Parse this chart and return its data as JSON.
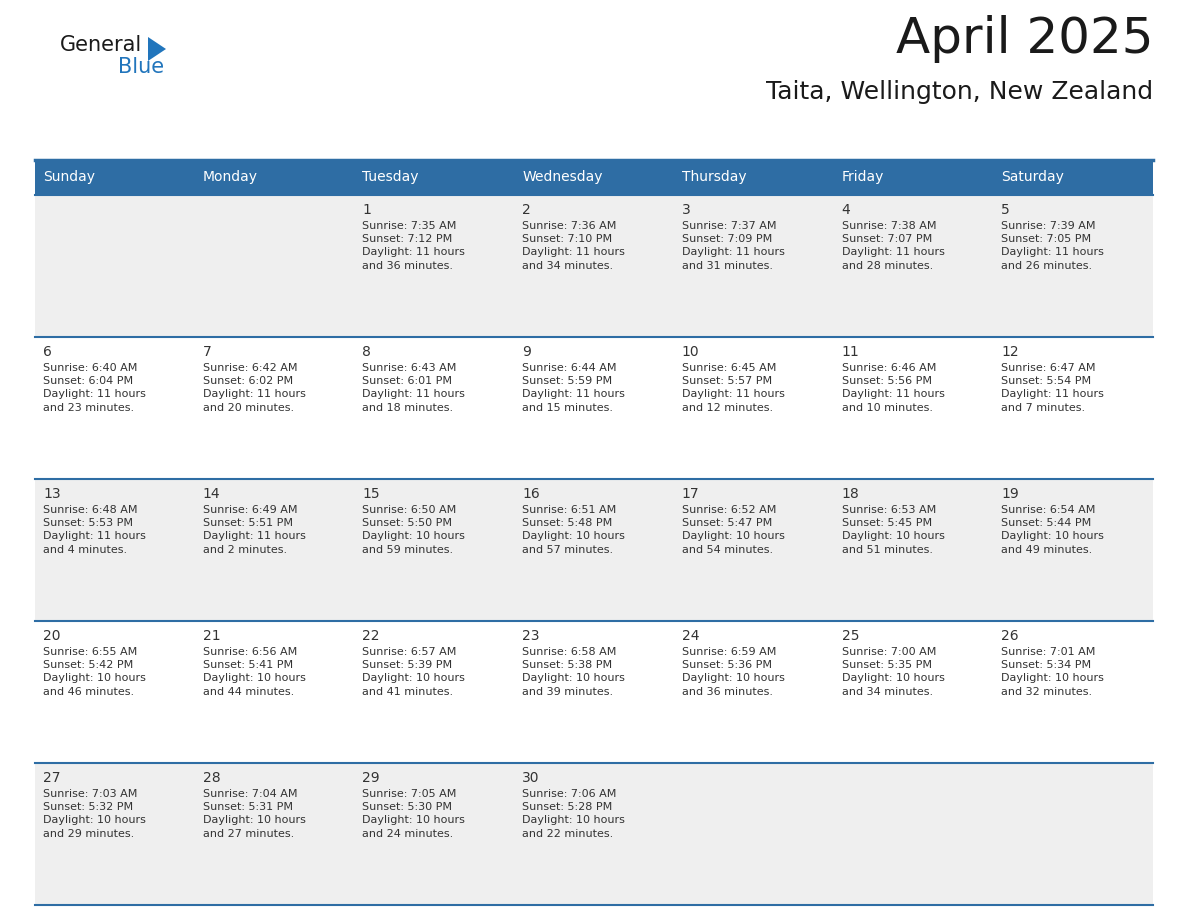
{
  "title": "April 2025",
  "subtitle": "Taita, Wellington, New Zealand",
  "header_bg": "#2E6DA4",
  "header_text_color": "#FFFFFF",
  "border_color": "#2E6DA4",
  "row_sep_color": "#3D6B9A",
  "text_color": "#333333",
  "cell_bg_even": "#EFEFEF",
  "cell_bg_odd": "#FFFFFF",
  "day_headers": [
    "Sunday",
    "Monday",
    "Tuesday",
    "Wednesday",
    "Thursday",
    "Friday",
    "Saturday"
  ],
  "calendar_data": [
    [
      {
        "day": "",
        "info": ""
      },
      {
        "day": "",
        "info": ""
      },
      {
        "day": "1",
        "info": "Sunrise: 7:35 AM\nSunset: 7:12 PM\nDaylight: 11 hours\nand 36 minutes."
      },
      {
        "day": "2",
        "info": "Sunrise: 7:36 AM\nSunset: 7:10 PM\nDaylight: 11 hours\nand 34 minutes."
      },
      {
        "day": "3",
        "info": "Sunrise: 7:37 AM\nSunset: 7:09 PM\nDaylight: 11 hours\nand 31 minutes."
      },
      {
        "day": "4",
        "info": "Sunrise: 7:38 AM\nSunset: 7:07 PM\nDaylight: 11 hours\nand 28 minutes."
      },
      {
        "day": "5",
        "info": "Sunrise: 7:39 AM\nSunset: 7:05 PM\nDaylight: 11 hours\nand 26 minutes."
      }
    ],
    [
      {
        "day": "6",
        "info": "Sunrise: 6:40 AM\nSunset: 6:04 PM\nDaylight: 11 hours\nand 23 minutes."
      },
      {
        "day": "7",
        "info": "Sunrise: 6:42 AM\nSunset: 6:02 PM\nDaylight: 11 hours\nand 20 minutes."
      },
      {
        "day": "8",
        "info": "Sunrise: 6:43 AM\nSunset: 6:01 PM\nDaylight: 11 hours\nand 18 minutes."
      },
      {
        "day": "9",
        "info": "Sunrise: 6:44 AM\nSunset: 5:59 PM\nDaylight: 11 hours\nand 15 minutes."
      },
      {
        "day": "10",
        "info": "Sunrise: 6:45 AM\nSunset: 5:57 PM\nDaylight: 11 hours\nand 12 minutes."
      },
      {
        "day": "11",
        "info": "Sunrise: 6:46 AM\nSunset: 5:56 PM\nDaylight: 11 hours\nand 10 minutes."
      },
      {
        "day": "12",
        "info": "Sunrise: 6:47 AM\nSunset: 5:54 PM\nDaylight: 11 hours\nand 7 minutes."
      }
    ],
    [
      {
        "day": "13",
        "info": "Sunrise: 6:48 AM\nSunset: 5:53 PM\nDaylight: 11 hours\nand 4 minutes."
      },
      {
        "day": "14",
        "info": "Sunrise: 6:49 AM\nSunset: 5:51 PM\nDaylight: 11 hours\nand 2 minutes."
      },
      {
        "day": "15",
        "info": "Sunrise: 6:50 AM\nSunset: 5:50 PM\nDaylight: 10 hours\nand 59 minutes."
      },
      {
        "day": "16",
        "info": "Sunrise: 6:51 AM\nSunset: 5:48 PM\nDaylight: 10 hours\nand 57 minutes."
      },
      {
        "day": "17",
        "info": "Sunrise: 6:52 AM\nSunset: 5:47 PM\nDaylight: 10 hours\nand 54 minutes."
      },
      {
        "day": "18",
        "info": "Sunrise: 6:53 AM\nSunset: 5:45 PM\nDaylight: 10 hours\nand 51 minutes."
      },
      {
        "day": "19",
        "info": "Sunrise: 6:54 AM\nSunset: 5:44 PM\nDaylight: 10 hours\nand 49 minutes."
      }
    ],
    [
      {
        "day": "20",
        "info": "Sunrise: 6:55 AM\nSunset: 5:42 PM\nDaylight: 10 hours\nand 46 minutes."
      },
      {
        "day": "21",
        "info": "Sunrise: 6:56 AM\nSunset: 5:41 PM\nDaylight: 10 hours\nand 44 minutes."
      },
      {
        "day": "22",
        "info": "Sunrise: 6:57 AM\nSunset: 5:39 PM\nDaylight: 10 hours\nand 41 minutes."
      },
      {
        "day": "23",
        "info": "Sunrise: 6:58 AM\nSunset: 5:38 PM\nDaylight: 10 hours\nand 39 minutes."
      },
      {
        "day": "24",
        "info": "Sunrise: 6:59 AM\nSunset: 5:36 PM\nDaylight: 10 hours\nand 36 minutes."
      },
      {
        "day": "25",
        "info": "Sunrise: 7:00 AM\nSunset: 5:35 PM\nDaylight: 10 hours\nand 34 minutes."
      },
      {
        "day": "26",
        "info": "Sunrise: 7:01 AM\nSunset: 5:34 PM\nDaylight: 10 hours\nand 32 minutes."
      }
    ],
    [
      {
        "day": "27",
        "info": "Sunrise: 7:03 AM\nSunset: 5:32 PM\nDaylight: 10 hours\nand 29 minutes."
      },
      {
        "day": "28",
        "info": "Sunrise: 7:04 AM\nSunset: 5:31 PM\nDaylight: 10 hours\nand 27 minutes."
      },
      {
        "day": "29",
        "info": "Sunrise: 7:05 AM\nSunset: 5:30 PM\nDaylight: 10 hours\nand 24 minutes."
      },
      {
        "day": "30",
        "info": "Sunrise: 7:06 AM\nSunset: 5:28 PM\nDaylight: 10 hours\nand 22 minutes."
      },
      {
        "day": "",
        "info": ""
      },
      {
        "day": "",
        "info": ""
      },
      {
        "day": "",
        "info": ""
      }
    ]
  ],
  "logo_text1": "General",
  "logo_text2": "Blue",
  "logo_color1": "#1a1a1a",
  "logo_color2": "#2175BC",
  "logo_triangle_color": "#2175BC",
  "title_fontsize": 36,
  "subtitle_fontsize": 18,
  "header_fontsize": 10,
  "day_num_fontsize": 10,
  "info_fontsize": 8
}
